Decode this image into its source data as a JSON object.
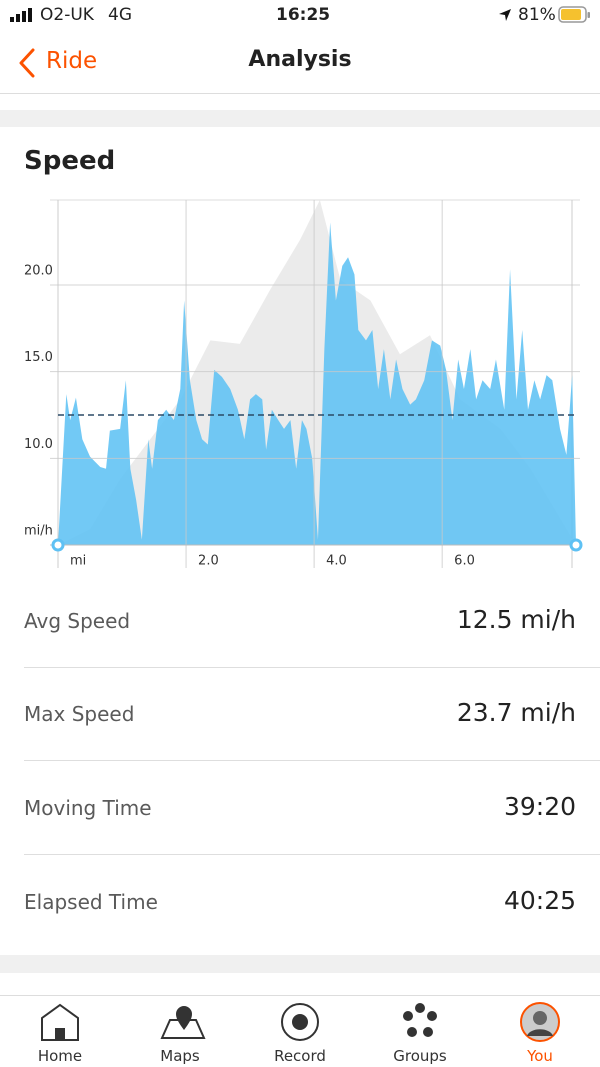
{
  "status_bar": {
    "carrier": "O2-UK",
    "network": "4G",
    "time": "16:25",
    "battery": "81%"
  },
  "nav": {
    "back": "Ride",
    "title": "Analysis"
  },
  "section_title": "Speed",
  "chart_data": {
    "type": "area",
    "y_label": "mi/h",
    "x_label": "mi",
    "xlim": [
      0,
      8.09
    ],
    "ylim": [
      5,
      24.9
    ],
    "xticks": [
      {
        "value": 2,
        "label": "2.0"
      },
      {
        "value": 4,
        "label": "4.0"
      },
      {
        "value": 6,
        "label": "6.0"
      }
    ],
    "yticks": [
      {
        "value": 10,
        "label": "10.0"
      },
      {
        "value": 15,
        "label": "15.0"
      },
      {
        "value": 20,
        "label": "20.0"
      }
    ],
    "grid": true,
    "avg_line": 12.5,
    "avg_color": "#2b4a66",
    "series": [
      {
        "color": "#ebebeb",
        "x": [
          0,
          0.5,
          0.97,
          1.44,
          1.91,
          2.38,
          2.84,
          3.31,
          3.78,
          4.09,
          4.41,
          4.88,
          5.34,
          5.81,
          6.28,
          6.91,
          7.38,
          8.09
        ],
        "values": [
          5.0,
          5.9,
          8.8,
          11.1,
          13.4,
          16.8,
          16.6,
          19.7,
          22.6,
          24.9,
          20.3,
          19.1,
          16.0,
          17.1,
          13.4,
          11.7,
          9.4,
          5.0
        ]
      },
      {
        "color": "#5ec1f4",
        "x": [
          0,
          0.13,
          0.19,
          0.28,
          0.38,
          0.5,
          0.66,
          0.75,
          0.81,
          0.97,
          1.06,
          1.13,
          1.22,
          1.31,
          1.41,
          1.47,
          1.56,
          1.69,
          1.81,
          1.91,
          1.97,
          2.06,
          2.16,
          2.25,
          2.34,
          2.44,
          2.56,
          2.69,
          2.81,
          2.91,
          3.0,
          3.09,
          3.19,
          3.25,
          3.34,
          3.44,
          3.53,
          3.63,
          3.72,
          3.81,
          3.88,
          3.97,
          4.06,
          4.16,
          4.25,
          4.34,
          4.44,
          4.53,
          4.63,
          4.69,
          4.81,
          4.91,
          5.0,
          5.09,
          5.19,
          5.28,
          5.38,
          5.5,
          5.59,
          5.72,
          5.84,
          5.97,
          6.06,
          6.16,
          6.25,
          6.34,
          6.44,
          6.53,
          6.63,
          6.75,
          6.84,
          6.97,
          7.06,
          7.16,
          7.25,
          7.34,
          7.44,
          7.53,
          7.63,
          7.72,
          7.84,
          7.94,
          8.03,
          8.09
        ],
        "values": [
          5.0,
          13.7,
          12.2,
          13.5,
          11.1,
          10.1,
          9.5,
          9.4,
          11.6,
          11.7,
          14.5,
          9.4,
          7.6,
          5.3,
          11.1,
          9.4,
          12.2,
          12.8,
          12.2,
          14.0,
          19.1,
          14.5,
          12.2,
          11.1,
          10.8,
          15.1,
          14.7,
          14.0,
          12.8,
          11.1,
          13.4,
          13.7,
          13.4,
          10.5,
          12.8,
          12.2,
          11.7,
          12.2,
          9.4,
          12.2,
          11.7,
          10.0,
          5.3,
          16.3,
          23.6,
          19.1,
          21.1,
          21.6,
          20.6,
          17.4,
          16.8,
          17.4,
          14.0,
          16.3,
          13.4,
          15.7,
          14.0,
          13.1,
          13.4,
          14.5,
          16.8,
          16.5,
          15.1,
          12.2,
          15.7,
          14.0,
          16.3,
          13.4,
          14.5,
          14.0,
          15.7,
          12.8,
          20.9,
          13.4,
          17.4,
          12.8,
          14.5,
          13.4,
          14.8,
          14.5,
          11.7,
          10.2,
          14.8,
          5.0
        ]
      }
    ]
  },
  "stats": [
    {
      "label": "Avg Speed",
      "value": "12.5 mi/h"
    },
    {
      "label": "Max Speed",
      "value": "23.7 mi/h"
    },
    {
      "label": "Moving Time",
      "value": "39:20"
    },
    {
      "label": "Elapsed Time",
      "value": "40:25"
    }
  ],
  "tabs": [
    "Home",
    "Maps",
    "Record",
    "Groups",
    "You"
  ]
}
